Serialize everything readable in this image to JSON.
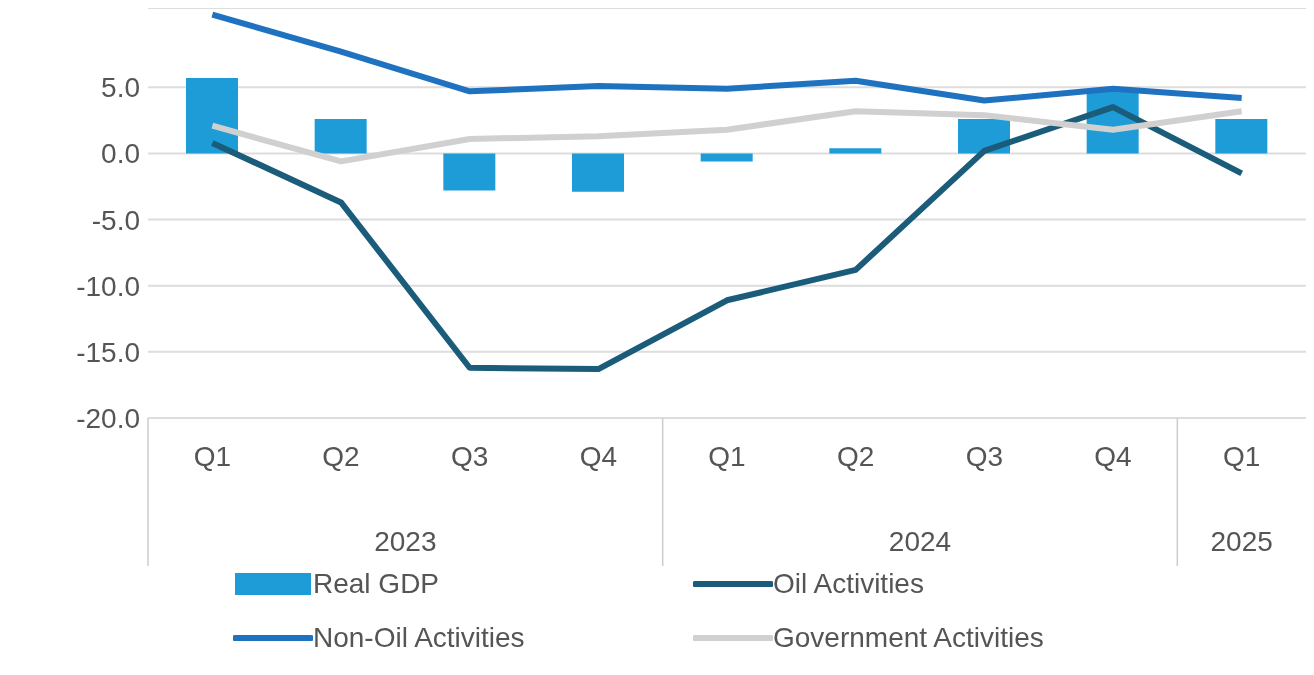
{
  "chart_data": {
    "type": "bar",
    "categories": [
      "Q1",
      "Q2",
      "Q3",
      "Q4",
      "Q1",
      "Q2",
      "Q3",
      "Q4",
      "Q1"
    ],
    "annotations": [
      "2023",
      "2024",
      "2025"
    ],
    "series": [
      {
        "name": "Real GDP",
        "color": "#1e9cd7",
        "values": [
          5.7,
          2.6,
          -2.8,
          -2.9,
          -0.6,
          0.4,
          2.6,
          4.7,
          2.6
        ]
      },
      {
        "name": "Oil Activities",
        "type": "line",
        "color": "#1a5c7a",
        "values": [
          0.8,
          -3.7,
          -16.2,
          -16.3,
          -11.1,
          -8.8,
          0.2,
          3.5,
          -1.5
        ]
      },
      {
        "name": "Non-Oil Activities",
        "type": "line",
        "color": "#1f72c0",
        "values": [
          10.5,
          7.7,
          4.7,
          5.1,
          4.9,
          5.5,
          4.0,
          4.9,
          4.2
        ]
      },
      {
        "name": "Government Activities",
        "type": "line",
        "color": "#d0d0d0",
        "values": [
          2.1,
          -0.6,
          1.1,
          1.3,
          1.8,
          3.2,
          2.9,
          1.8,
          3.2
        ]
      }
    ],
    "ylim": [
      -20,
      11
    ],
    "yticks": [
      {
        "value": -20,
        "label": "-20.0"
      },
      {
        "value": -15,
        "label": "-15.0"
      },
      {
        "value": -10,
        "label": "-10.0"
      },
      {
        "value": -5,
        "label": "-5.0"
      },
      {
        "value": 0,
        "label": "0.0"
      },
      {
        "value": 5,
        "label": "5.0"
      }
    ],
    "grid": "y",
    "legend": "bottom",
    "line_style": "solid",
    "marker": "none"
  }
}
